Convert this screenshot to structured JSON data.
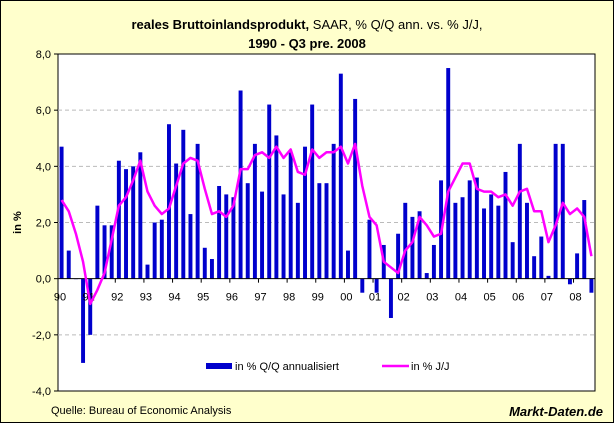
{
  "chart_data": {
    "type": "bar+line",
    "title_bold": "reales Bruttoinlandsprodukt,",
    "title_rest": " SAAR, % Q/Q ann. vs. % J/J,",
    "subtitle": "1990 - Q3 pre. 2008",
    "ylabel": "in %",
    "ylim": [
      -4,
      8
    ],
    "yticks": [
      "-4,0",
      "-2,0",
      "0,0",
      "2,0",
      "4,0",
      "6,0",
      "8,0"
    ],
    "ytick_values": [
      -4,
      -2,
      0,
      2,
      4,
      6,
      8
    ],
    "xtick_labels": [
      "90",
      "91",
      "92",
      "93",
      "94",
      "95",
      "96",
      "97",
      "98",
      "99",
      "00",
      "01",
      "02",
      "03",
      "04",
      "05",
      "06",
      "07",
      "08"
    ],
    "x_start": "1990 Q1",
    "x_end": "2008 Q3",
    "grid": "horizontal dashed",
    "legend_position": "bottom",
    "series": [
      {
        "name": "in % Q/Q annualisiert",
        "type": "bar",
        "color": "#0000CC",
        "values": [
          4.7,
          1.0,
          0.0,
          -3.0,
          -2.0,
          2.6,
          1.9,
          1.9,
          4.2,
          3.9,
          4.0,
          4.5,
          0.5,
          2.0,
          2.1,
          5.5,
          4.1,
          5.3,
          2.3,
          4.8,
          1.1,
          0.7,
          3.3,
          3.0,
          2.9,
          6.7,
          3.4,
          4.8,
          3.1,
          6.2,
          5.1,
          3.0,
          4.5,
          2.7,
          4.7,
          6.2,
          3.4,
          3.4,
          4.8,
          7.3,
          1.0,
          6.4,
          -0.5,
          2.1,
          -0.5,
          1.2,
          -1.4,
          1.6,
          2.7,
          2.2,
          2.4,
          0.2,
          1.2,
          3.5,
          7.5,
          2.7,
          2.9,
          3.5,
          3.6,
          2.5,
          3.0,
          2.6,
          3.8,
          1.3,
          4.8,
          2.7,
          0.8,
          1.5,
          0.1,
          4.8,
          4.8,
          -0.2,
          0.9,
          2.8,
          -0.5
        ]
      },
      {
        "name": "in % J/J",
        "type": "line",
        "color": "#FF00FF",
        "values": [
          2.8,
          2.4,
          1.6,
          0.6,
          -0.9,
          -0.4,
          0.2,
          1.4,
          2.6,
          2.9,
          3.5,
          4.2,
          3.1,
          2.6,
          2.3,
          2.5,
          3.3,
          4.1,
          4.3,
          4.2,
          3.2,
          2.3,
          2.4,
          2.2,
          2.6,
          3.9,
          3.9,
          4.4,
          4.5,
          4.3,
          4.7,
          4.3,
          4.6,
          3.8,
          3.7,
          4.6,
          4.3,
          4.5,
          4.5,
          4.7,
          4.1,
          4.8,
          3.3,
          2.2,
          1.9,
          0.6,
          0.4,
          0.2,
          1.0,
          1.3,
          2.2,
          1.9,
          1.5,
          1.6,
          3.1,
          3.6,
          4.1,
          4.1,
          3.2,
          3.1,
          3.1,
          2.9,
          3.0,
          2.6,
          3.1,
          3.2,
          2.4,
          2.4,
          1.3,
          1.9,
          2.7,
          2.3,
          2.5,
          2.2,
          0.8
        ]
      }
    ]
  },
  "footer": {
    "source": "Quelle: Bureau of Economic Analysis",
    "brand": "Markt-Daten.de"
  }
}
